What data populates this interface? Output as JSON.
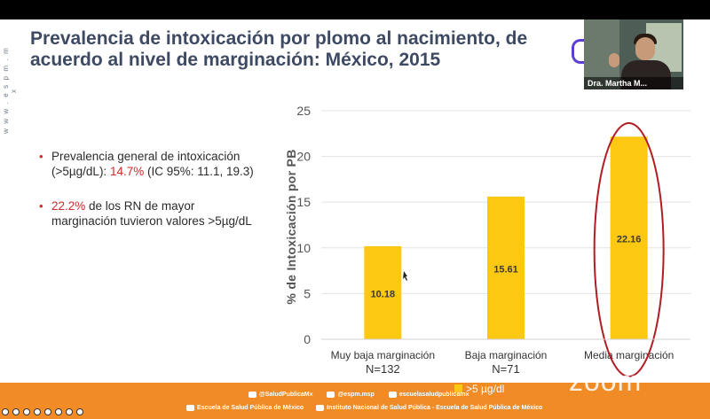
{
  "slide": {
    "side_brand": "w w w . e s p m . m x",
    "title": "Prevalencia de intoxicación por plomo al nacimiento, de acuerdo al nivel de marginación: México, 2015",
    "bullets": [
      {
        "before": "Prevalencia general de intoxicación (>5µg/dL): ",
        "highlight": "14.7%",
        "after": " (IC 95%: 11.1, 19.3)"
      },
      {
        "before": "",
        "highlight": "22.2%",
        "after": " de los RN de mayor marginación tuvieron valores >5µg/dL"
      }
    ]
  },
  "chart_data": {
    "type": "bar",
    "categories": [
      "Muy baja marginación",
      "Baja marginación",
      "Media marginación"
    ],
    "category_sublabels": [
      "N=132",
      "N=71",
      ""
    ],
    "values": [
      10.18,
      15.61,
      22.16
    ],
    "data_labels": [
      "10.18",
      "15.61",
      "22.16"
    ],
    "ylabel": "% de Intoxicación por PB",
    "ylim": [
      0,
      25
    ],
    "yticks": [
      0,
      5,
      10,
      15,
      20,
      25
    ],
    "gridlines": true,
    "bar_color": "#fcc812",
    "highlight_color": "#b01e23",
    "highlighted_category": "Media marginación",
    "legend": {
      "label": ">5 µg/dl",
      "color": "#fcc812",
      "placement": "bottom"
    }
  },
  "footer": {
    "social": [
      "@SaludPublicaMx",
      "@espm.msp",
      "escuelasaludpublicamx"
    ],
    "institutions": [
      "Escuela de Salud Pública de México",
      "Instituto Nacional de Salud Pública - Escuela de Salud Pública de México"
    ],
    "brand": "zoom",
    "accent": "#f08b25"
  },
  "video": {
    "participant_name": "Dra. Martha M..."
  }
}
